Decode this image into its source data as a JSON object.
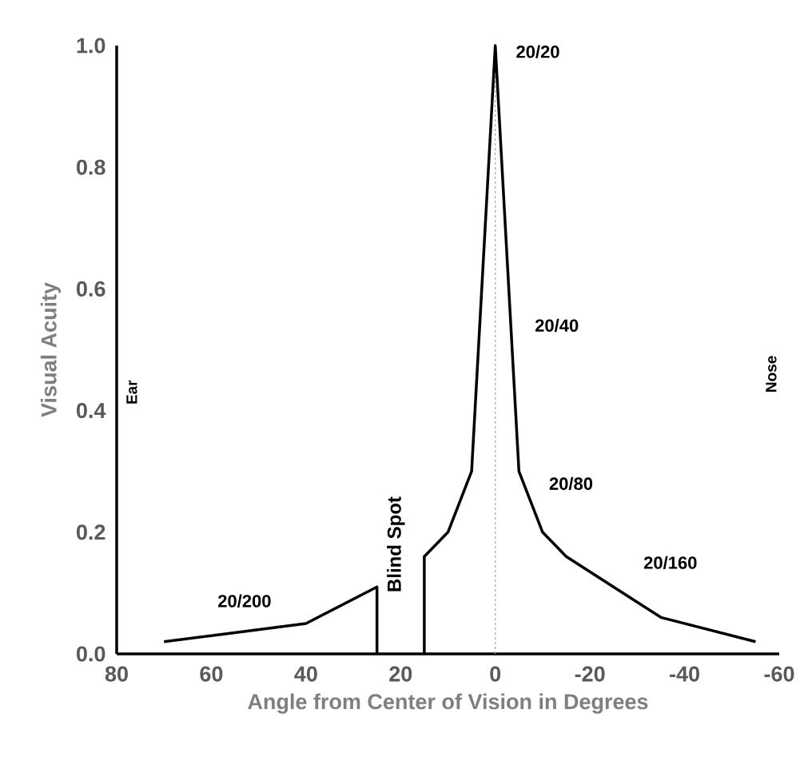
{
  "chart_data": {
    "type": "line",
    "xlabel": "Angle from Center of Vision in Degrees",
    "ylabel": "Visual Acuity",
    "x": [
      70,
      60,
      40,
      25,
      25,
      20,
      15,
      15,
      10,
      5,
      0,
      -5,
      -10,
      -15,
      -35,
      -55
    ],
    "values": [
      0.02,
      0.03,
      0.05,
      0.11,
      0,
      null,
      0,
      0.16,
      0.2,
      0.3,
      1.0,
      0.3,
      0.2,
      0.16,
      0.06,
      0.02
    ],
    "color": "#000000",
    "xlim": [
      80,
      -60
    ],
    "xticks": [
      80,
      60,
      40,
      20,
      0,
      -20,
      -40,
      -60
    ],
    "ylim": [
      0,
      1
    ],
    "yticks": [
      {
        "value": 0,
        "label": "0.0"
      },
      0.2,
      0.4,
      0.6,
      0.8,
      {
        "value": 1,
        "label": "1.0"
      }
    ],
    "ref_lines": [
      {
        "axis": "x",
        "value": 0,
        "color": "#a6a6a6",
        "line_style": "dashed"
      }
    ],
    "annotations": [
      "20/20",
      "20/40",
      "20/80",
      "20/160",
      "20/200",
      "Blind Spot",
      "Ear",
      "Nose"
    ]
  }
}
